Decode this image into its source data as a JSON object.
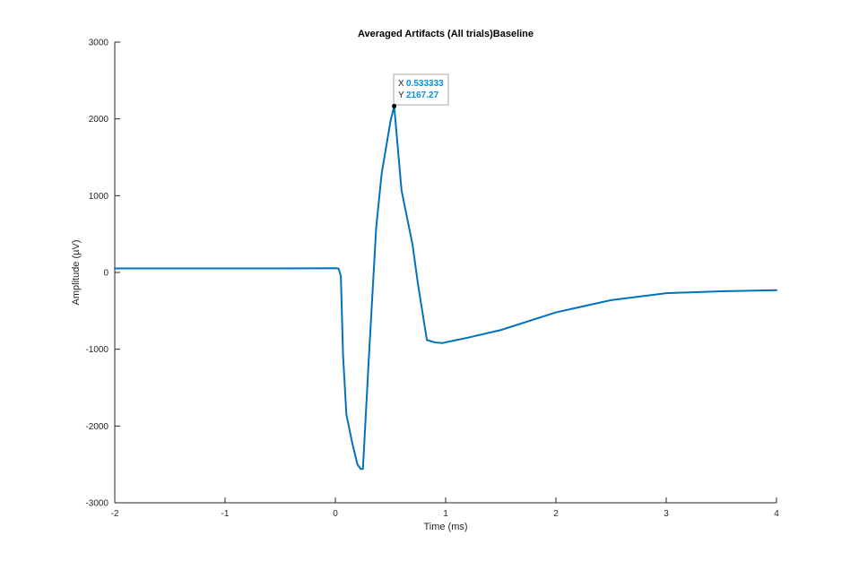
{
  "chart_data": {
    "type": "line",
    "title": "Averaged Artifacts (All trials)Baseline",
    "xlabel": "Time (ms)",
    "ylabel": "Amplitude (µV)",
    "xlim": [
      -2,
      4
    ],
    "ylim": [
      -3000,
      3000
    ],
    "xticks": [
      -2,
      -1,
      0,
      1,
      2,
      3,
      4
    ],
    "xtick_labels": [
      "-2",
      "-1",
      "0",
      "1",
      "2",
      "3",
      "4"
    ],
    "yticks": [
      -3000,
      -2000,
      -1000,
      0,
      1000,
      2000,
      3000
    ],
    "ytick_labels": [
      "-3000",
      "-2000",
      "-1000",
      "0",
      "1000",
      "2000",
      "3000"
    ],
    "grid": false,
    "line_color": "#0072BD",
    "series": [
      {
        "x": [
          -2,
          -1.5,
          -1,
          -0.5,
          0,
          0.03,
          0.05,
          0.07,
          0.1,
          0.15,
          0.2,
          0.23,
          0.25,
          0.3,
          0.37,
          0.42,
          0.5,
          0.533333,
          0.6,
          0.7,
          0.75,
          0.83,
          0.9,
          0.97,
          1.0,
          1.2,
          1.5,
          2.0,
          2.5,
          3.0,
          3.5,
          4.0
        ],
        "y": [
          52,
          52,
          52,
          52,
          55,
          50,
          -50,
          -1080,
          -1850,
          -2200,
          -2500,
          -2560,
          -2560,
          -1210,
          580,
          1290,
          1970,
          2167.27,
          1070,
          360,
          -160,
          -880,
          -910,
          -920,
          -910,
          -850,
          -750,
          -520,
          -360,
          -270,
          -245,
          -230
        ]
      }
    ],
    "datatip": {
      "x_label": "X",
      "x_value": "0.533333",
      "y_label": "Y",
      "y_value": "2167.27",
      "x": 0.533333,
      "y": 2167.27
    }
  }
}
